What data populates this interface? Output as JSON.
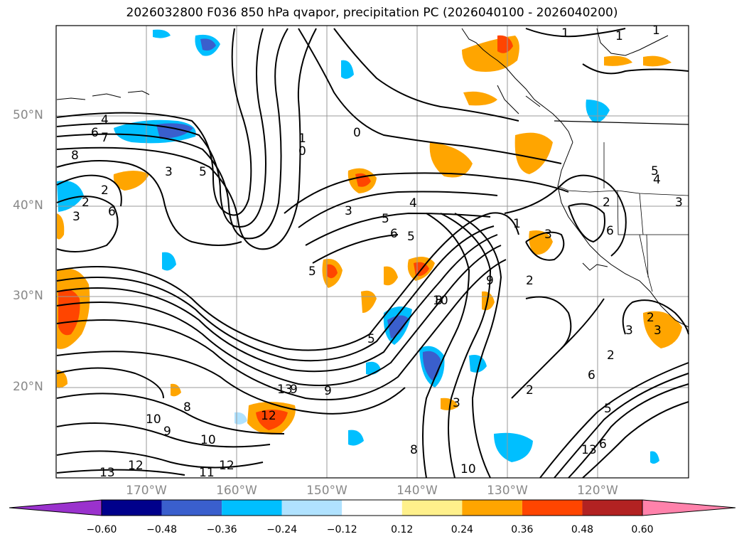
{
  "title": "2026032800 F036 850 hPa qvapor, precipitation PC (2026040100 - 2026040200)",
  "lat_labels": [
    "50°N",
    "40°N",
    "30°N",
    "20°N"
  ],
  "lon_labels": [
    "170°W",
    "160°W",
    "150°W",
    "140°W",
    "130°W",
    "120°W"
  ],
  "colorbar": {
    "ticks": [
      "−0.60",
      "−0.48",
      "−0.36",
      "−0.24",
      "−0.12",
      "0.12",
      "0.24",
      "0.36",
      "0.48",
      "0.60"
    ],
    "colors": [
      "#9a32cd",
      "#00008b",
      "#3a5fcd",
      "#00bfff",
      "#b0e2ff",
      "#ffffff",
      "#fff08b",
      "#ffa500",
      "#ff4500",
      "#b22222",
      "#ff82ab"
    ]
  },
  "contour_labels": [
    "1",
    "4",
    "6",
    "7",
    "8",
    "2",
    "3",
    "5",
    "0",
    "0",
    "1",
    "3",
    "4",
    "5",
    "5",
    "6",
    "5",
    "2",
    "3",
    "6",
    "5",
    "9",
    "8",
    "10",
    "9",
    "10",
    "12",
    "11",
    "13",
    "12",
    "13",
    "9",
    "10",
    "8",
    "3",
    "2",
    "3",
    "1",
    "2",
    "5",
    "6",
    "2",
    "3",
    "6",
    "4",
    "3",
    "2",
    "9",
    "8",
    "10",
    "12",
    "13",
    "6",
    "5",
    "2",
    "3",
    "1",
    "1"
  ],
  "colors": {
    "contour": "#000000",
    "grid": "#999999",
    "coast": "#000000"
  }
}
